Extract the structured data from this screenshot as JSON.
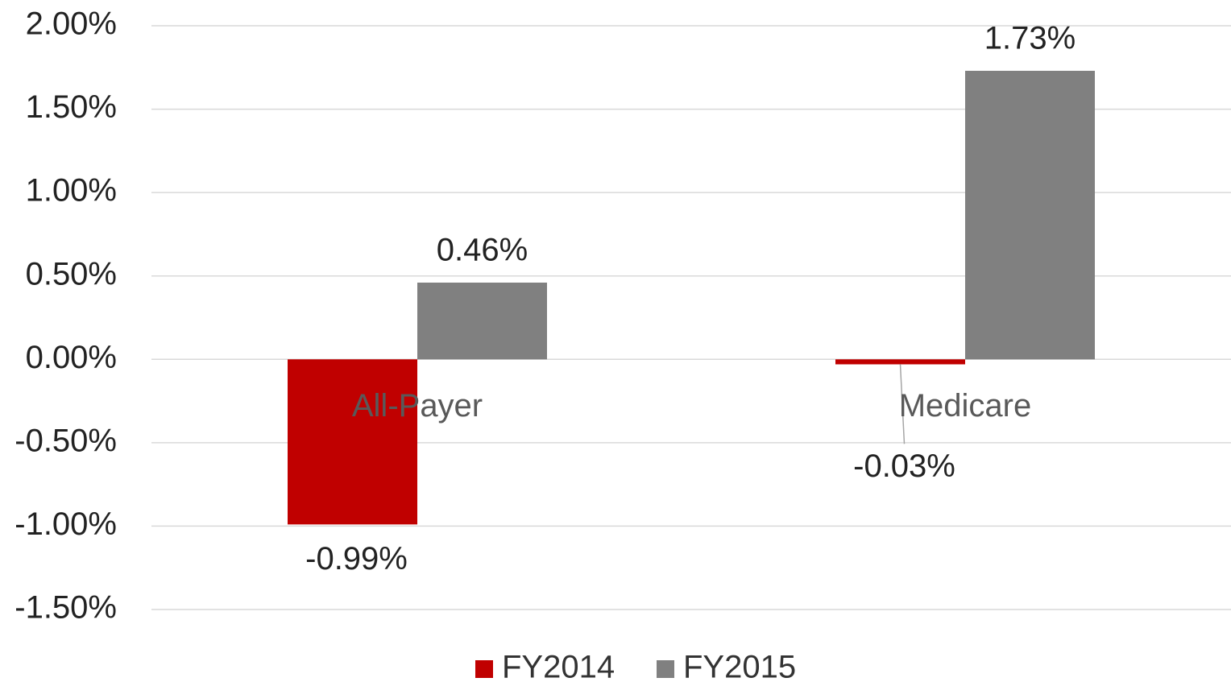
{
  "chart_data": {
    "type": "bar",
    "categories": [
      "All-Payer",
      "Medicare"
    ],
    "series": [
      {
        "name": "FY2014",
        "color": "#c00000",
        "values": [
          -0.99,
          -0.03
        ],
        "value_labels": [
          "-0.99%",
          "-0.03%"
        ]
      },
      {
        "name": "FY2015",
        "color": "#808080",
        "values": [
          0.46,
          1.73
        ],
        "value_labels": [
          "0.46%",
          "1.73%"
        ]
      }
    ],
    "ylim": [
      -1.5,
      2.0
    ],
    "yticks": [
      {
        "value": -1.5,
        "label": "-1.50%"
      },
      {
        "value": -1.0,
        "label": "-1.00%"
      },
      {
        "value": -0.5,
        "label": "-0.50%"
      },
      {
        "value": 0,
        "label": "0.00%"
      },
      {
        "value": 0.5,
        "label": "0.50%"
      },
      {
        "value": 1.0,
        "label": "1.00%"
      },
      {
        "value": 1.5,
        "label": "1.50%"
      },
      {
        "value": 2.0,
        "label": "2.00%"
      }
    ],
    "grid": true,
    "legend": "bottom"
  }
}
